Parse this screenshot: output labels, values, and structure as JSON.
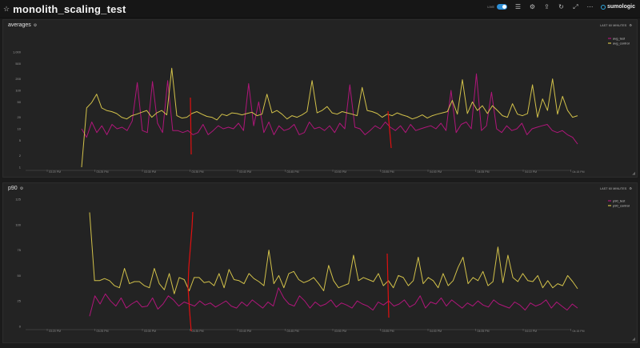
{
  "dashboard": {
    "title": "monolith_scaling_test",
    "toggle_label": "LIVE",
    "brand": "sumologic"
  },
  "panels": [
    {
      "title": "averages",
      "range_label": "LAST 60 MINUTES"
    },
    {
      "title": "p90",
      "range_label": "LAST 60 MINUTES"
    }
  ],
  "chart_data": [
    {
      "type": "line",
      "title": "averages",
      "y_scale": "log",
      "ylim": [
        1,
        1000
      ],
      "y_ticks": [
        "1",
        "2",
        "5",
        "10",
        "20",
        "50",
        "100",
        "200",
        "500",
        "1,000"
      ],
      "x_ticks": [
        "03:20 PM",
        "03:25 PM",
        "03:30 PM",
        "03:35 PM",
        "03:40 PM",
        "03:45 PM",
        "03:50 PM",
        "03:55 PM",
        "04:00 PM",
        "04:05 PM",
        "04:10 PM",
        "04:15 PM"
      ],
      "legend": "top-right",
      "series": [
        {
          "name": "avg_test",
          "color": "#b0167a",
          "values": [
            10,
            6,
            15,
            8,
            12,
            7,
            13,
            10,
            11,
            9,
            16,
            160,
            9,
            8,
            170,
            14,
            8,
            180,
            9,
            9,
            8,
            9,
            7,
            8,
            13,
            7,
            9,
            12,
            10,
            11,
            10,
            14,
            9,
            150,
            12,
            50,
            8,
            15,
            7,
            12,
            9,
            10,
            13,
            7,
            8,
            15,
            10,
            11,
            9,
            12,
            8,
            14,
            10,
            140,
            11,
            10,
            7,
            9,
            12,
            10,
            15,
            11,
            9,
            12,
            8,
            13,
            9,
            10,
            11,
            12,
            10,
            14,
            9,
            100,
            8,
            13,
            15,
            10,
            270,
            9,
            12,
            90,
            10,
            8,
            12,
            9,
            10,
            14,
            7,
            10,
            11,
            12,
            13,
            9,
            8,
            9,
            7,
            6,
            4
          ]
        },
        {
          "name": "avg_control",
          "color": "#d2c14a",
          "values": [
            1,
            35,
            48,
            80,
            35,
            30,
            28,
            25,
            20,
            18,
            22,
            24,
            27,
            30,
            20,
            26,
            30,
            23,
            380,
            22,
            19,
            20,
            25,
            28,
            24,
            21,
            20,
            17,
            24,
            22,
            26,
            25,
            23,
            25,
            27,
            22,
            24,
            80,
            26,
            30,
            24,
            18,
            22,
            20,
            23,
            28,
            180,
            26,
            30,
            38,
            26,
            24,
            28,
            26,
            24,
            22,
            120,
            30,
            28,
            25,
            20,
            24,
            22,
            26,
            23,
            21,
            18,
            20,
            23,
            19,
            22,
            24,
            26,
            28,
            55,
            24,
            190,
            25,
            50,
            30,
            40,
            25,
            40,
            30,
            22,
            20,
            45,
            24,
            22,
            25,
            140,
            20,
            60,
            30,
            200,
            24,
            70,
            30,
            20,
            22
          ]
        },
        {
          "name": "spike",
          "color": "#e01010",
          "values": []
        }
      ]
    },
    {
      "type": "line",
      "title": "p90",
      "ylim": [
        0,
        125
      ],
      "y_ticks": [
        "0",
        "25",
        "50",
        "75",
        "100",
        "125"
      ],
      "x_ticks": [
        "03:20 PM",
        "03:25 PM",
        "03:30 PM",
        "03:35 PM",
        "03:40 PM",
        "03:45 PM",
        "03:50 PM",
        "03:55 PM",
        "04:00 PM",
        "04:05 PM",
        "04:10 PM",
        "04:15 PM"
      ],
      "legend": "top-right",
      "series": [
        {
          "name": "p90_test",
          "color": "#b0167a",
          "values": [
            10,
            30,
            22,
            32,
            25,
            20,
            28,
            18,
            22,
            25,
            19,
            20,
            28,
            17,
            22,
            30,
            26,
            20,
            24,
            22,
            20,
            25,
            21,
            23,
            19,
            22,
            25,
            20,
            18,
            24,
            20,
            26,
            22,
            18,
            24,
            20,
            38,
            28,
            22,
            20,
            30,
            25,
            18,
            24,
            20,
            22,
            26,
            19,
            23,
            21,
            18,
            25,
            22,
            20,
            16,
            24,
            21,
            25,
            20,
            22,
            26,
            19,
            22,
            30,
            18,
            24,
            22,
            28,
            20,
            26,
            22,
            18,
            23,
            20,
            25,
            21,
            19,
            26,
            22,
            20,
            18,
            24,
            21,
            16,
            23,
            20,
            22,
            26,
            18,
            24,
            20,
            16,
            22,
            18
          ]
        },
        {
          "name": "p90_control",
          "color": "#d2c14a",
          "values": [
            112,
            45,
            45,
            47,
            45,
            40,
            38,
            57,
            42,
            44,
            44,
            40,
            38,
            57,
            42,
            36,
            52,
            32,
            48,
            46,
            35,
            48,
            48,
            43,
            44,
            40,
            52,
            38,
            56,
            46,
            45,
            42,
            52,
            47,
            44,
            40,
            75,
            42,
            50,
            38,
            52,
            54,
            46,
            43,
            45,
            48,
            42,
            35,
            60,
            45,
            38,
            40,
            42,
            70,
            45,
            48,
            46,
            44,
            52,
            40,
            45,
            38,
            50,
            48,
            40,
            45,
            68,
            42,
            48,
            45,
            38,
            52,
            40,
            45,
            58,
            68,
            42,
            48,
            45,
            54,
            40,
            44,
            78,
            43,
            70,
            48,
            44,
            52,
            45,
            44,
            50,
            38,
            45,
            38,
            42,
            40,
            50,
            44,
            37
          ]
        }
      ]
    }
  ]
}
